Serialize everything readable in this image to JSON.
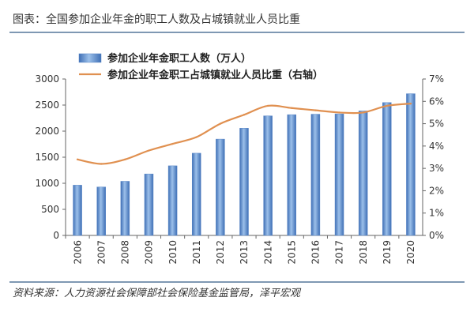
{
  "header": {
    "title": "图表：全国参加企业年金的职工人数及占城镇就业人员比重"
  },
  "footer": {
    "source": "资料来源：人力资源社会保障部社会保险基金监管局，泽平宏观"
  },
  "colors": {
    "bar": "#5a88c8",
    "line": "#e09050",
    "rule": "#7f98b3",
    "axis": "#666666"
  },
  "chart_data": {
    "type": "bar+line",
    "title": "全国参加企业年金的职工人数及占城镇就业人员比重",
    "categories": [
      "2006",
      "2007",
      "2008",
      "2009",
      "2010",
      "2011",
      "2012",
      "2013",
      "2014",
      "2015",
      "2016",
      "2017",
      "2018",
      "2019",
      "2020"
    ],
    "series": [
      {
        "name": "参加企业年金职工人数（万人）",
        "type": "bar",
        "axis": "left",
        "values": [
          964,
          929,
          1038,
          1179,
          1335,
          1577,
          1847,
          2056,
          2293,
          2316,
          2325,
          2331,
          2388,
          2548,
          2718
        ]
      },
      {
        "name": "参加企业年金职工占城镇就业人员比重（右轴）",
        "type": "line",
        "axis": "right",
        "values": [
          3.4,
          3.2,
          3.4,
          3.8,
          4.1,
          4.4,
          5.0,
          5.4,
          5.8,
          5.7,
          5.6,
          5.5,
          5.5,
          5.8,
          5.9
        ]
      }
    ],
    "left_axis": {
      "ylim": [
        0,
        3000
      ],
      "ticks": [
        0,
        500,
        1000,
        1500,
        2000,
        2500,
        3000
      ],
      "tick_labels": [
        "0",
        "500",
        "1000",
        "1500",
        "2000",
        "2500",
        "3000"
      ]
    },
    "right_axis": {
      "ylim": [
        0,
        7
      ],
      "ticks": [
        0,
        1,
        2,
        3,
        4,
        5,
        6,
        7
      ],
      "tick_labels": [
        "0%",
        "1%",
        "2%",
        "3%",
        "4%",
        "5%",
        "6%",
        "7%"
      ]
    },
    "legend": {
      "placement": "top-left",
      "entries": [
        "参加企业年金职工人数（万人）",
        "参加企业年金职工占城镇就业人员比重（右轴）"
      ]
    },
    "grid": false
  }
}
